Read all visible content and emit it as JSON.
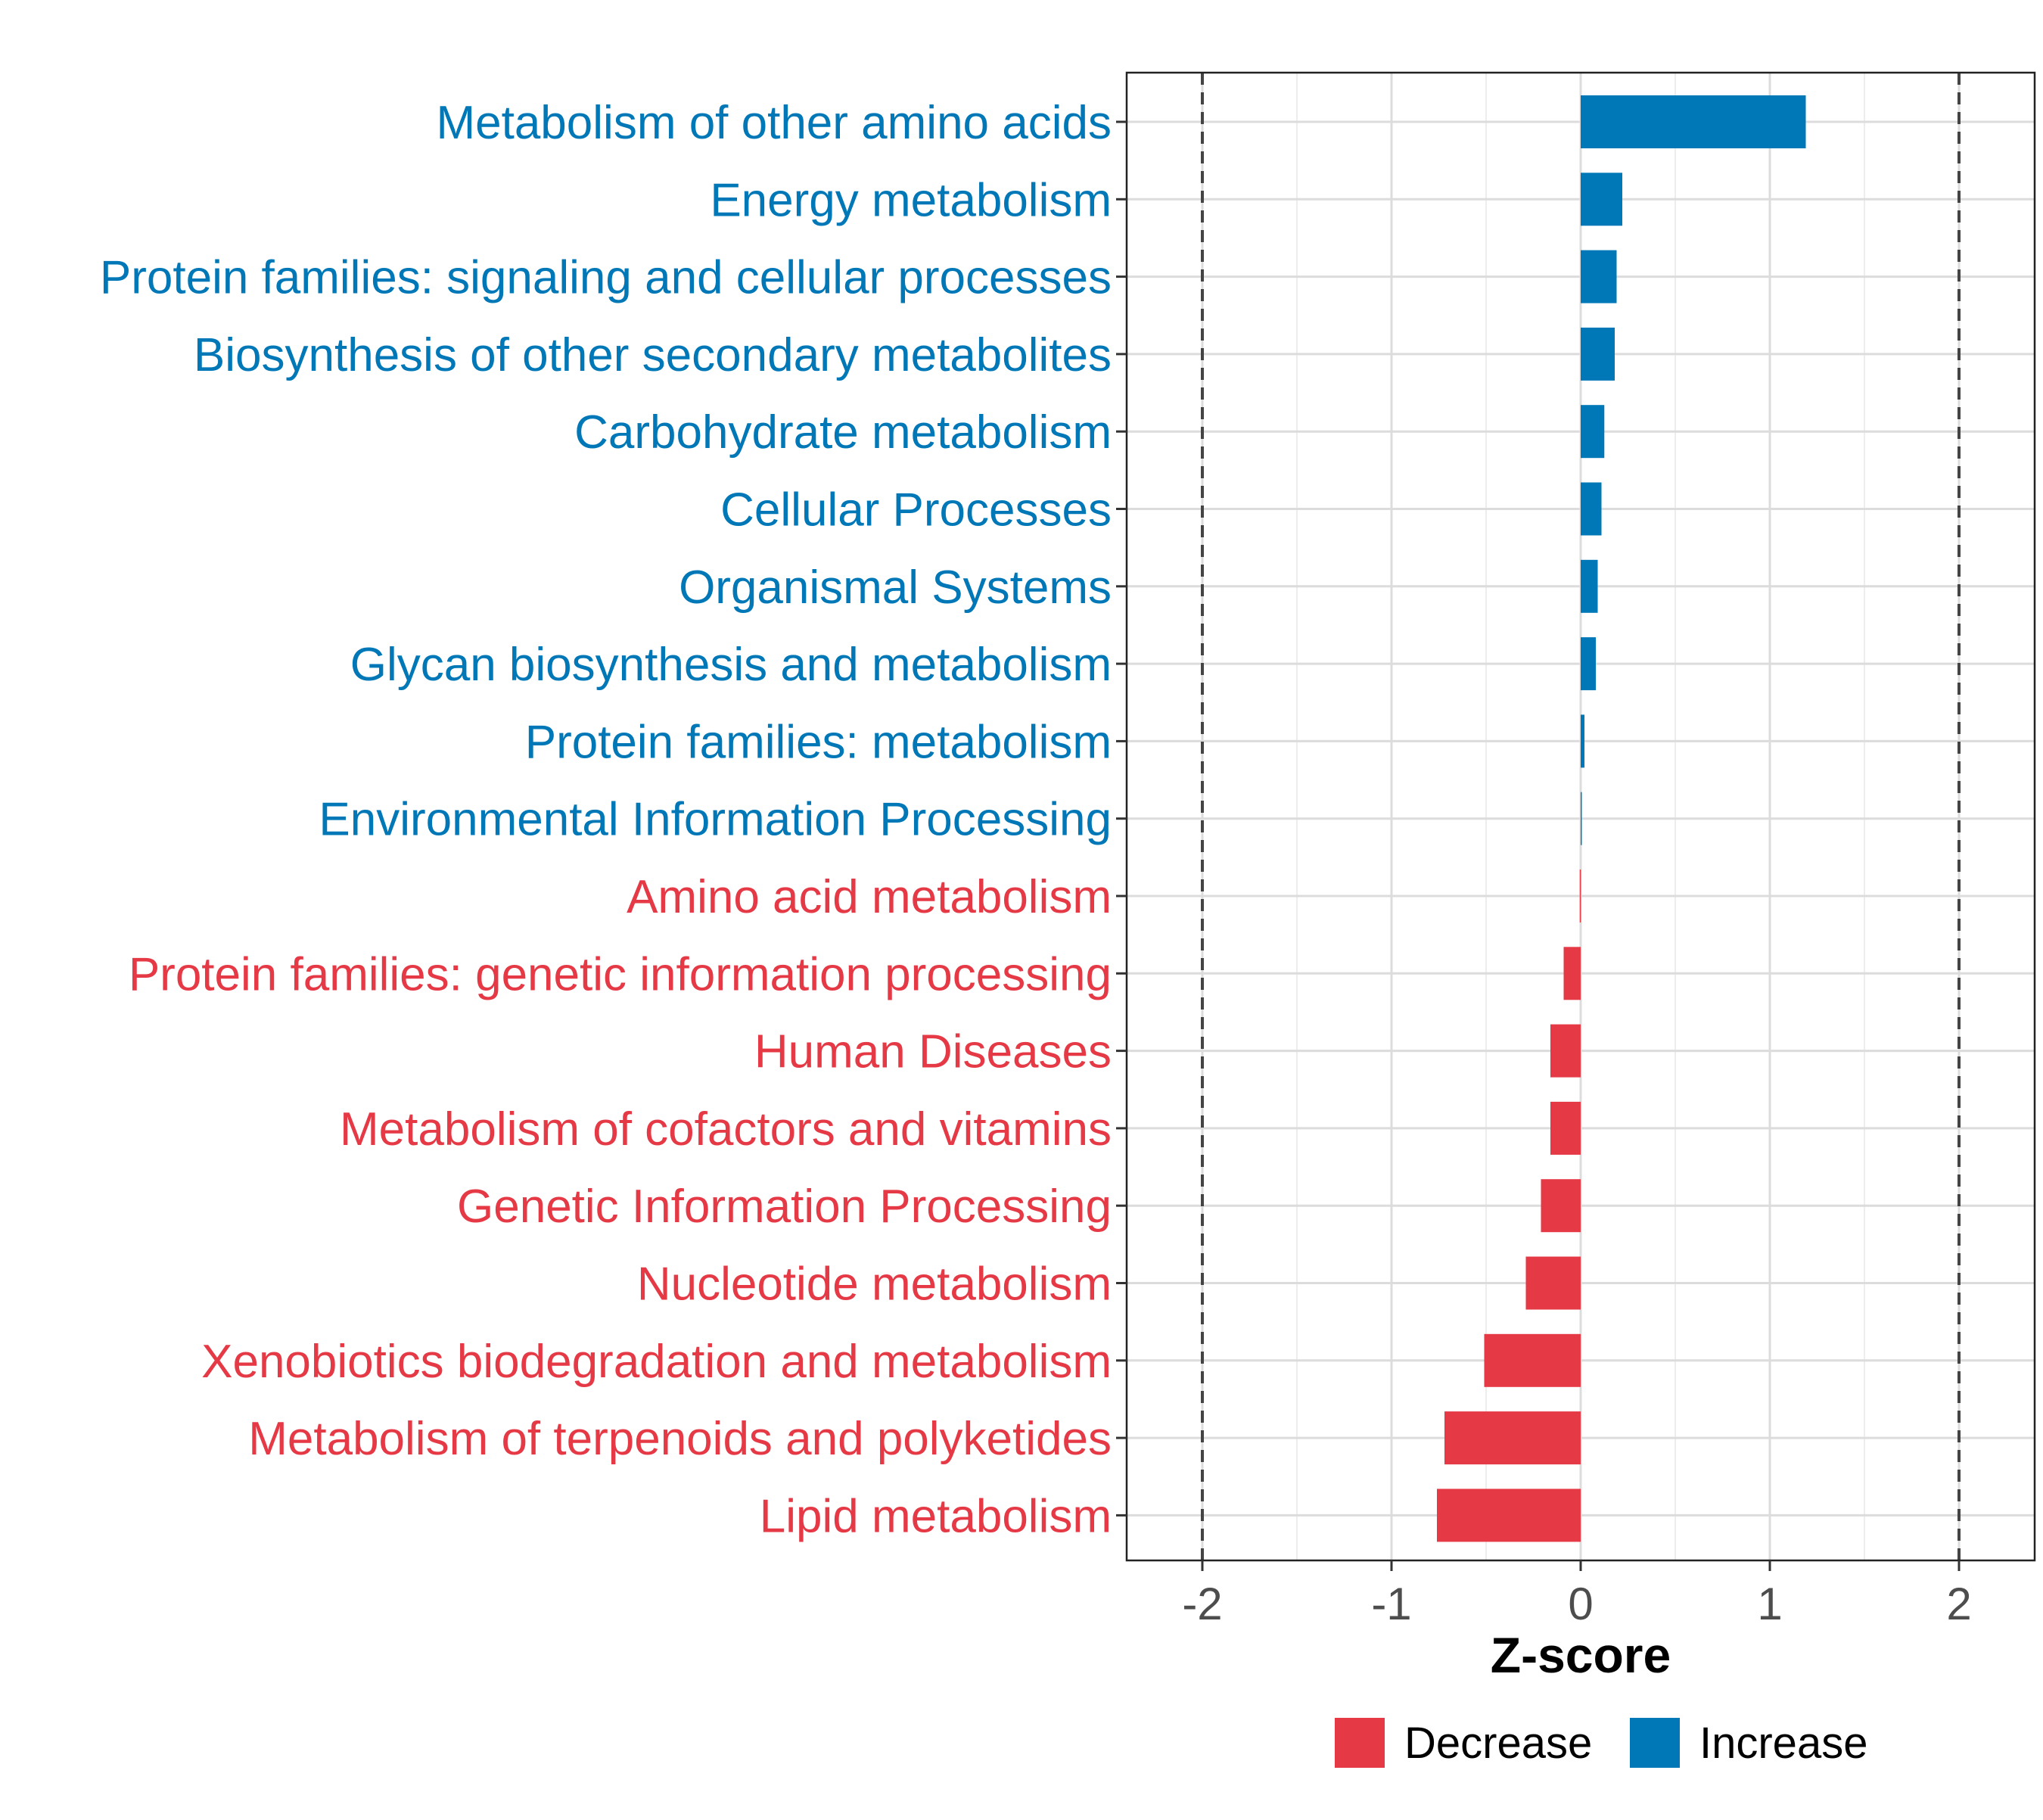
{
  "chart_data": {
    "type": "bar",
    "orientation": "horizontal",
    "title": "",
    "xlabel": "Z-score",
    "ylabel": "",
    "xlim": [
      -2.4,
      2.4
    ],
    "x_ticks": [
      -2,
      -1,
      0,
      1,
      2
    ],
    "x_tick_labels": [
      "-2",
      "-1",
      "0",
      "1",
      "2"
    ],
    "reference_lines": [
      -2,
      2
    ],
    "grid": true,
    "categories": [
      "Metabolism of other amino acids",
      "Energy metabolism",
      "Protein families: signaling and cellular processes",
      "Biosynthesis of other secondary metabolites",
      "Carbohydrate metabolism",
      "Cellular Processes",
      "Organismal Systems",
      "Glycan biosynthesis and metabolism",
      "Protein families: metabolism",
      "Environmental Information Processing",
      "Amino acid metabolism",
      "Protein families: genetic information processing",
      "Human Diseases",
      "Metabolism of cofactors and vitamins",
      "Genetic Information Processing",
      "Nucleotide metabolism",
      "Xenobiotics biodegradation and metabolism",
      "Metabolism of terpenoids and polyketides",
      "Lipid metabolism"
    ],
    "values": [
      1.19,
      0.22,
      0.19,
      0.18,
      0.125,
      0.11,
      0.09,
      0.08,
      0.02,
      0.005,
      -0.005,
      -0.09,
      -0.16,
      -0.16,
      -0.21,
      -0.29,
      -0.51,
      -0.72,
      -0.76
    ],
    "groups": [
      "Increase",
      "Increase",
      "Increase",
      "Increase",
      "Increase",
      "Increase",
      "Increase",
      "Increase",
      "Increase",
      "Increase",
      "Decrease",
      "Decrease",
      "Decrease",
      "Decrease",
      "Decrease",
      "Decrease",
      "Decrease",
      "Decrease",
      "Decrease"
    ],
    "legend": {
      "position": "bottom",
      "entries": [
        {
          "label": "Decrease",
          "color": "#E63946"
        },
        {
          "label": "Increase",
          "color": "#0077B6"
        }
      ]
    }
  }
}
